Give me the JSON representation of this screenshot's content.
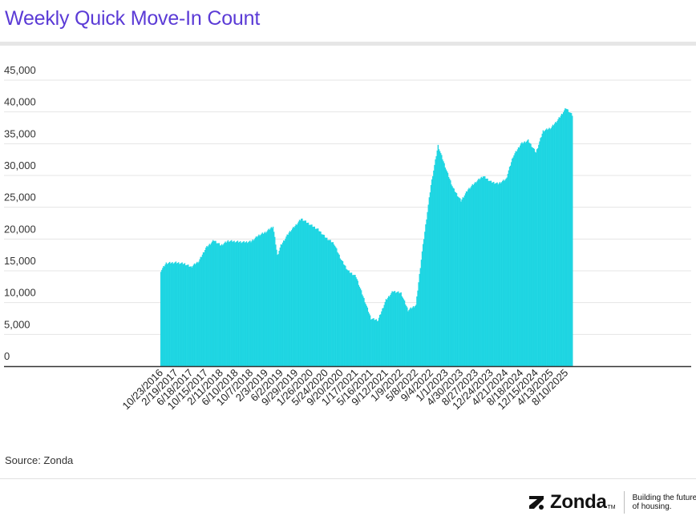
{
  "header": {
    "title": "Weekly Quick Move-In Count"
  },
  "footer": {
    "source": "Source: Zonda",
    "brand_name": "Zonda",
    "brand_tm": "TM",
    "tagline": "Building the future of housing."
  },
  "colors": {
    "title": "#5b3bd6",
    "bars": "#1cd3e0",
    "bars_dark": "#0fb3c2",
    "axis": "#333333",
    "grid": "#e5e5e5"
  },
  "icons": {
    "brand_mark": "zonda-z-icon"
  },
  "chart_data": {
    "type": "bar",
    "title": "Weekly Quick Move-In Count",
    "xlabel": "",
    "ylabel": "",
    "ylim": [
      0,
      45000
    ],
    "yticks": [
      0,
      5000,
      10000,
      15000,
      20000,
      25000,
      30000,
      35000,
      40000,
      45000
    ],
    "ytick_labels": [
      "0",
      "5,000",
      "10,000",
      "15,000",
      "20,000",
      "25,000",
      "30,000",
      "35,000",
      "40,000",
      "45,000"
    ],
    "grid": true,
    "x_range": [
      "10/23/2016",
      "9/28/2025"
    ],
    "xtick_labels": [
      "10/23/2016",
      "2/19/2017",
      "6/18/2017",
      "10/15/2017",
      "2/11/2018",
      "6/10/2018",
      "10/7/2018",
      "2/3/2019",
      "6/2/2019",
      "9/29/2019",
      "1/26/2020",
      "5/24/2020",
      "9/20/2020",
      "1/17/2021",
      "5/16/2021",
      "9/12/2021",
      "1/9/2022",
      "5/8/2022",
      "9/4/2022",
      "1/1/2023",
      "4/30/2023",
      "8/27/2023",
      "12/24/2023",
      "4/21/2024",
      "8/18/2024",
      "12/15/2024",
      "4/13/2025",
      "8/10/2025"
    ],
    "series": [
      {
        "values": [
          {
            "x": "10/23/2016",
            "y": 15000
          },
          {
            "x": "12/4/2016",
            "y": 16200
          },
          {
            "x": "2/19/2017",
            "y": 16300
          },
          {
            "x": "4/30/2017",
            "y": 16100
          },
          {
            "x": "6/18/2017",
            "y": 15600
          },
          {
            "x": "8/20/2017",
            "y": 16500
          },
          {
            "x": "10/15/2017",
            "y": 18600
          },
          {
            "x": "12/17/2017",
            "y": 19800
          },
          {
            "x": "2/11/2018",
            "y": 19000
          },
          {
            "x": "4/8/2018",
            "y": 19700
          },
          {
            "x": "6/10/2018",
            "y": 19600
          },
          {
            "x": "8/12/2018",
            "y": 19500
          },
          {
            "x": "10/7/2018",
            "y": 19600
          },
          {
            "x": "12/9/2018",
            "y": 20600
          },
          {
            "x": "2/3/2019",
            "y": 21100
          },
          {
            "x": "3/31/2019",
            "y": 22000
          },
          {
            "x": "5/5/2019",
            "y": 17400
          },
          {
            "x": "6/2/2019",
            "y": 19000
          },
          {
            "x": "8/4/2019",
            "y": 21000
          },
          {
            "x": "9/29/2019",
            "y": 22200
          },
          {
            "x": "11/10/2019",
            "y": 23200
          },
          {
            "x": "1/26/2020",
            "y": 22200
          },
          {
            "x": "3/22/2020",
            "y": 21500
          },
          {
            "x": "5/24/2020",
            "y": 20200
          },
          {
            "x": "7/26/2020",
            "y": 19300
          },
          {
            "x": "9/20/2020",
            "y": 16800
          },
          {
            "x": "11/15/2020",
            "y": 15000
          },
          {
            "x": "1/17/2021",
            "y": 14100
          },
          {
            "x": "3/14/2021",
            "y": 11000
          },
          {
            "x": "5/16/2021",
            "y": 7500
          },
          {
            "x": "7/11/2021",
            "y": 7200
          },
          {
            "x": "9/12/2021",
            "y": 10400
          },
          {
            "x": "11/7/2021",
            "y": 11800
          },
          {
            "x": "1/9/2022",
            "y": 11500
          },
          {
            "x": "3/6/2022",
            "y": 8800
          },
          {
            "x": "5/8/2022",
            "y": 9600
          },
          {
            "x": "6/26/2022",
            "y": 18000
          },
          {
            "x": "9/4/2022",
            "y": 28500
          },
          {
            "x": "10/30/2022",
            "y": 34700
          },
          {
            "x": "1/1/2023",
            "y": 31000
          },
          {
            "x": "2/26/2023",
            "y": 28000
          },
          {
            "x": "4/30/2023",
            "y": 26000
          },
          {
            "x": "6/25/2023",
            "y": 27800
          },
          {
            "x": "8/27/2023",
            "y": 29000
          },
          {
            "x": "10/22/2023",
            "y": 29900
          },
          {
            "x": "12/24/2023",
            "y": 29000
          },
          {
            "x": "2/18/2024",
            "y": 28700
          },
          {
            "x": "4/21/2024",
            "y": 29400
          },
          {
            "x": "6/16/2024",
            "y": 33000
          },
          {
            "x": "8/18/2024",
            "y": 35000
          },
          {
            "x": "10/13/2024",
            "y": 35500
          },
          {
            "x": "12/15/2024",
            "y": 33600
          },
          {
            "x": "2/9/2025",
            "y": 37000
          },
          {
            "x": "4/13/2025",
            "y": 37500
          },
          {
            "x": "6/8/2025",
            "y": 38800
          },
          {
            "x": "8/10/2025",
            "y": 40600
          },
          {
            "x": "9/28/2025",
            "y": 39500
          }
        ]
      }
    ]
  }
}
